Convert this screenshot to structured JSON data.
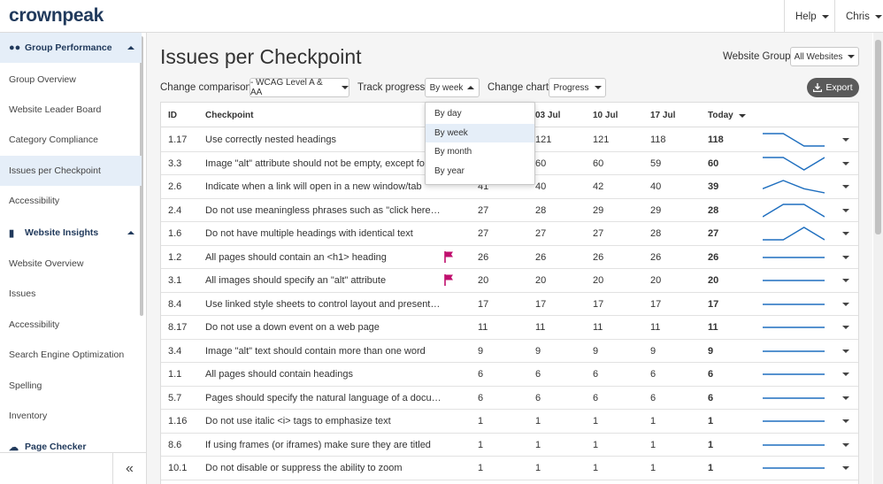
{
  "brand": {
    "logo": "crownpeak"
  },
  "topnav": {
    "help": "Help",
    "user": "Chris"
  },
  "sidebar": {
    "sections": [
      {
        "label": "Group Performance",
        "icon": "users-icon"
      },
      {
        "label": "Website Insights",
        "icon": "bar-chart-icon"
      }
    ],
    "group_items": [
      "Group Overview",
      "Website Leader Board",
      "Category Compliance",
      "Issues per Checkpoint",
      "Accessibility"
    ],
    "website_items": [
      "Website Overview",
      "Issues",
      "Accessibility",
      "Search Engine Optimization",
      "Spelling",
      "Inventory"
    ],
    "page_checker": "Page Checker",
    "collapse": "«"
  },
  "page": {
    "title": "Issues per Checkpoint",
    "website_group_label": "Website Group:",
    "website_group_value": "All Websites",
    "change_comparison_label": "Change comparison:",
    "change_comparison_value": "- WCAG Level A & AA",
    "track_progress_label": "Track progress:",
    "track_progress_value": "By week",
    "change_chart_label": "Change chart:",
    "change_chart_value": "Progress",
    "export": "Export"
  },
  "dropdown": {
    "options": [
      "By day",
      "By week",
      "By month",
      "By year"
    ],
    "selected": "By week"
  },
  "table": {
    "columns": {
      "id": "ID",
      "checkpoint": "Checkpoint",
      "c1": "03 Jul",
      "c2": "10 Jul",
      "c3": "17 Jul",
      "today": "Today"
    },
    "rows": [
      {
        "id": "1.17",
        "checkpoint": "Use correctly nested headings",
        "c0": "",
        "c1": "121",
        "c2": "121",
        "c3": "118",
        "today": "118",
        "flag": false
      },
      {
        "id": "3.3",
        "checkpoint": "Image \"alt\" attribute should not be empty, except for or",
        "c0": "",
        "c1": "60",
        "c2": "60",
        "c3": "59",
        "today": "60",
        "flag": false
      },
      {
        "id": "2.6",
        "checkpoint": "Indicate when a link will open in a new window/tab",
        "c0": "41",
        "c1": "40",
        "c2": "42",
        "c3": "40",
        "today": "39",
        "flag": false
      },
      {
        "id": "2.4",
        "checkpoint": "Do not use meaningless phrases such as \"click here\" or \"…",
        "c0": "27",
        "c1": "28",
        "c2": "29",
        "c3": "29",
        "today": "28",
        "flag": false
      },
      {
        "id": "1.6",
        "checkpoint": "Do not have multiple headings with identical text",
        "c0": "27",
        "c1": "27",
        "c2": "27",
        "c3": "28",
        "today": "27",
        "flag": false
      },
      {
        "id": "1.2",
        "checkpoint": "All pages should contain an <h1> heading",
        "c0": "26",
        "c1": "26",
        "c2": "26",
        "c3": "26",
        "today": "26",
        "flag": true
      },
      {
        "id": "3.1",
        "checkpoint": "All images should specify an \"alt\" attribute",
        "c0": "20",
        "c1": "20",
        "c2": "20",
        "c3": "20",
        "today": "20",
        "flag": true
      },
      {
        "id": "8.4",
        "checkpoint": "Use linked style sheets to control layout and presentation",
        "c0": "17",
        "c1": "17",
        "c2": "17",
        "c3": "17",
        "today": "17",
        "flag": false
      },
      {
        "id": "8.17",
        "checkpoint": "Do not use a down event on a web page",
        "c0": "11",
        "c1": "11",
        "c2": "11",
        "c3": "11",
        "today": "11",
        "flag": false
      },
      {
        "id": "3.4",
        "checkpoint": "Image \"alt\" text should contain more than one word",
        "c0": "9",
        "c1": "9",
        "c2": "9",
        "c3": "9",
        "today": "9",
        "flag": false
      },
      {
        "id": "1.1",
        "checkpoint": "All pages should contain headings",
        "c0": "6",
        "c1": "6",
        "c2": "6",
        "c3": "6",
        "today": "6",
        "flag": false
      },
      {
        "id": "5.7",
        "checkpoint": "Pages should specify the natural language of a document",
        "c0": "6",
        "c1": "6",
        "c2": "6",
        "c3": "6",
        "today": "6",
        "flag": false
      },
      {
        "id": "1.16",
        "checkpoint": "Do not use italic <i> tags to emphasize text",
        "c0": "1",
        "c1": "1",
        "c2": "1",
        "c3": "1",
        "today": "1",
        "flag": false
      },
      {
        "id": "8.6",
        "checkpoint": "If using frames (or iframes) make sure they are titled",
        "c0": "1",
        "c1": "1",
        "c2": "1",
        "c3": "1",
        "today": "1",
        "flag": false
      },
      {
        "id": "10.1",
        "checkpoint": "Do not disable or suppress the ability to zoom",
        "c0": "1",
        "c1": "1",
        "c2": "1",
        "c3": "1",
        "today": "1",
        "flag": false
      }
    ]
  },
  "colors": {
    "brand_navy": "#213a5c",
    "brand_blue": "#2aa7d4",
    "sparkline": "#1f6fbf",
    "flag": "#c0106e",
    "active_bg": "#e5eef8"
  }
}
